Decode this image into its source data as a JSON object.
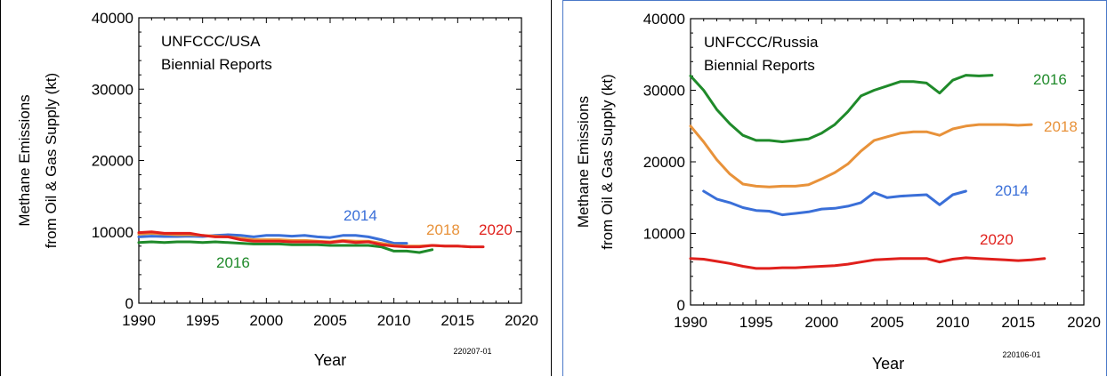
{
  "chart_data": [
    {
      "type": "line",
      "title": "UNFCCC/USA",
      "subtitle": "Biennial Reports",
      "xlabel": "Year",
      "ylabel": "Methane Emissions from Oil & Gas Supply (kt)",
      "ylabel_lines": [
        "Methane Emissions",
        "from Oil & Gas Supply (kt)"
      ],
      "xlim": [
        1990,
        2020
      ],
      "ylim": [
        0,
        40000
      ],
      "x_ticks": [
        1990,
        1995,
        2000,
        2005,
        2010,
        2015,
        2020
      ],
      "y_ticks": [
        0,
        10000,
        20000,
        30000,
        40000
      ],
      "grid": false,
      "legend": "inline labels",
      "code": "220207-01",
      "series": [
        {
          "name": "2014",
          "color": "#3a6fd8",
          "x": [
            1990,
            1991,
            1992,
            1993,
            1994,
            1995,
            1996,
            1997,
            1998,
            1999,
            2000,
            2001,
            2002,
            2003,
            2004,
            2005,
            2006,
            2007,
            2008,
            2009,
            2010,
            2011
          ],
          "y": [
            9300,
            9400,
            9350,
            9350,
            9400,
            9350,
            9500,
            9600,
            9500,
            9300,
            9500,
            9500,
            9400,
            9500,
            9300,
            9200,
            9500,
            9500,
            9300,
            8900,
            8400,
            8400
          ]
        },
        {
          "name": "2016",
          "color": "#1f8a2a",
          "x": [
            1990,
            1991,
            1992,
            1993,
            1994,
            1995,
            1996,
            1997,
            1998,
            1999,
            2000,
            2001,
            2002,
            2003,
            2004,
            2005,
            2006,
            2007,
            2008,
            2009,
            2010,
            2011,
            2012,
            2013
          ],
          "y": [
            8500,
            8600,
            8500,
            8600,
            8600,
            8500,
            8600,
            8500,
            8400,
            8300,
            8300,
            8300,
            8200,
            8200,
            8200,
            8100,
            8100,
            8100,
            8100,
            7900,
            7300,
            7300,
            7100,
            7500
          ]
        },
        {
          "name": "2018",
          "color": "#e8923a",
          "x": [
            1990,
            1991,
            1992,
            1993,
            1994,
            1995,
            1996,
            1997,
            1998,
            1999,
            2000,
            2001,
            2002,
            2003,
            2004,
            2005,
            2006,
            2007,
            2008,
            2009,
            2010,
            2011,
            2012,
            2013,
            2014,
            2015,
            2016
          ],
          "y": [
            9700,
            9800,
            9700,
            9600,
            9600,
            9500,
            9400,
            9300,
            9100,
            8900,
            8900,
            8900,
            8800,
            8800,
            8700,
            8600,
            8800,
            8700,
            8700,
            8400,
            8100,
            8000,
            8000,
            8100,
            8000,
            8000,
            7900
          ]
        },
        {
          "name": "2020",
          "color": "#e0201c",
          "x": [
            1990,
            1991,
            1992,
            1993,
            1994,
            1995,
            1996,
            1997,
            1998,
            1999,
            2000,
            2001,
            2002,
            2003,
            2004,
            2005,
            2006,
            2007,
            2008,
            2009,
            2010,
            2011,
            2012,
            2013,
            2014,
            2015,
            2016,
            2017
          ],
          "y": [
            9900,
            10000,
            9800,
            9800,
            9800,
            9500,
            9300,
            9300,
            8900,
            8700,
            8700,
            8700,
            8600,
            8600,
            8600,
            8500,
            8700,
            8500,
            8600,
            8200,
            8000,
            7900,
            7900,
            8100,
            8000,
            8000,
            7900,
            7900
          ]
        }
      ]
    },
    {
      "type": "line",
      "title": "UNFCCC/Russia",
      "subtitle": "Biennial Reports",
      "xlabel": "Year",
      "ylabel": "Methane Emissions from Oil & Gas Supply (kt)",
      "ylabel_lines": [
        "Methane Emissions",
        "from Oil & Gas Supply (kt)"
      ],
      "xlim": [
        1990,
        2020
      ],
      "ylim": [
        0,
        40000
      ],
      "x_ticks": [
        1990,
        1995,
        2000,
        2005,
        2010,
        2015,
        2020
      ],
      "y_ticks": [
        0,
        10000,
        20000,
        30000,
        40000
      ],
      "grid": false,
      "legend": "inline labels",
      "code": "220106-01",
      "series": [
        {
          "name": "2016",
          "color": "#1f8a2a",
          "x": [
            1990,
            1991,
            1992,
            1993,
            1994,
            1995,
            1996,
            1997,
            1998,
            1999,
            2000,
            2001,
            2002,
            2003,
            2004,
            2005,
            2006,
            2007,
            2008,
            2009,
            2010,
            2011,
            2012,
            2013
          ],
          "y": [
            32000,
            30000,
            27300,
            25300,
            23700,
            23000,
            23000,
            22800,
            23000,
            23200,
            24000,
            25200,
            27000,
            29200,
            30000,
            30600,
            31200,
            31200,
            31000,
            29600,
            31400,
            32100,
            32000,
            32100
          ]
        },
        {
          "name": "2018",
          "color": "#e8923a",
          "x": [
            1990,
            1991,
            1992,
            1993,
            1994,
            1995,
            1996,
            1997,
            1998,
            1999,
            2000,
            2001,
            2002,
            2003,
            2004,
            2005,
            2006,
            2007,
            2008,
            2009,
            2010,
            2011,
            2012,
            2013,
            2014,
            2015,
            2016
          ],
          "y": [
            25000,
            22800,
            20300,
            18300,
            16900,
            16600,
            16500,
            16600,
            16600,
            16800,
            17600,
            18500,
            19700,
            21500,
            23000,
            23500,
            24000,
            24200,
            24200,
            23700,
            24600,
            25000,
            25200,
            25200,
            25200,
            25100,
            25200
          ]
        },
        {
          "name": "2014",
          "color": "#3a6fd8",
          "x": [
            1991,
            1992,
            1993,
            1994,
            1995,
            1996,
            1997,
            1998,
            1999,
            2000,
            2001,
            2002,
            2003,
            2004,
            2005,
            2006,
            2007,
            2008,
            2009,
            2010,
            2011
          ],
          "y": [
            15900,
            14800,
            14300,
            13600,
            13200,
            13100,
            12600,
            12800,
            13000,
            13400,
            13500,
            13800,
            14300,
            15700,
            15000,
            15200,
            15300,
            15400,
            14000,
            15400,
            15900
          ]
        },
        {
          "name": "2020",
          "color": "#e0201c",
          "x": [
            1990,
            1991,
            1992,
            1993,
            1994,
            1995,
            1996,
            1997,
            1998,
            1999,
            2000,
            2001,
            2002,
            2003,
            2004,
            2005,
            2006,
            2007,
            2008,
            2009,
            2010,
            2011,
            2012,
            2013,
            2014,
            2015,
            2016,
            2017
          ],
          "y": [
            6500,
            6400,
            6100,
            5800,
            5400,
            5100,
            5100,
            5200,
            5200,
            5300,
            5400,
            5500,
            5700,
            6000,
            6300,
            6400,
            6500,
            6500,
            6500,
            6000,
            6400,
            6600,
            6500,
            6400,
            6300,
            6200,
            6300,
            6500
          ]
        }
      ]
    }
  ]
}
